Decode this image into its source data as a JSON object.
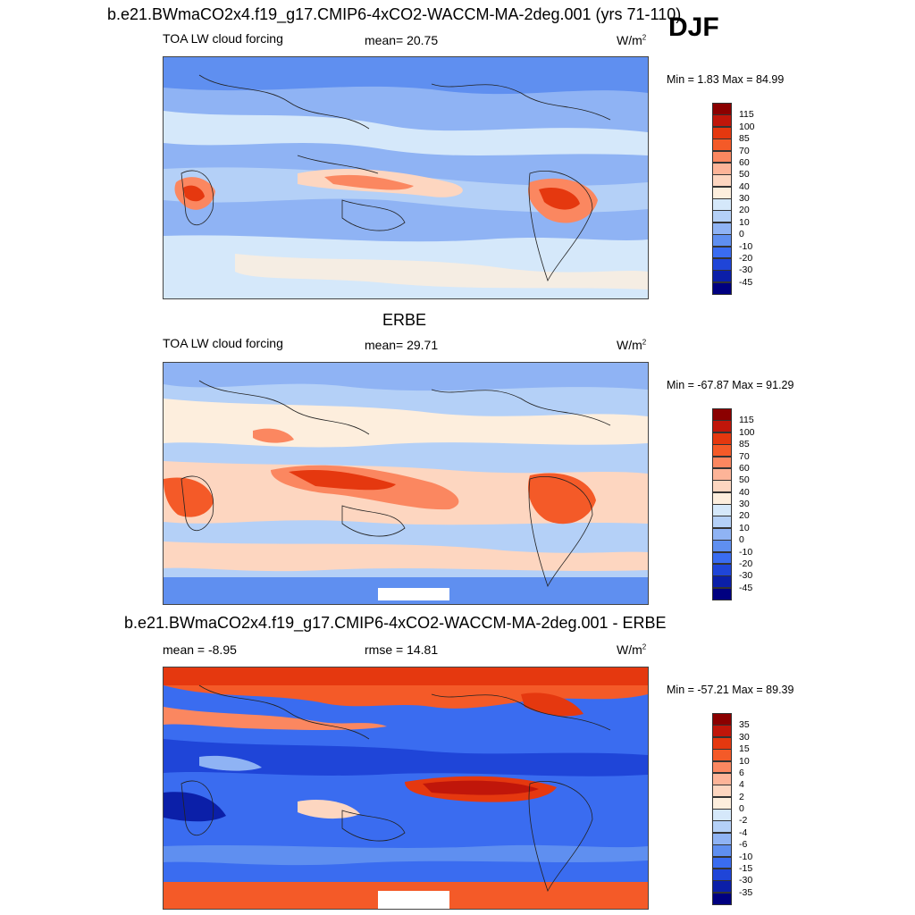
{
  "header": {
    "title": "b.e21.BWmaCO2x4.f19_g17.CMIP6-4xCO2-WACCM-MA-2deg.001 (yrs 71-110)",
    "season": "DJF"
  },
  "chart_data": [
    {
      "type": "heatmap",
      "panel": "model",
      "variable": "TOA LW cloud forcing",
      "mean_label": "mean=  20.75",
      "units": "W/m",
      "units_sup": "2",
      "minmax_label": "Min =   1.83 Max =  84.99",
      "min": 1.83,
      "max": 84.99,
      "mean": 20.75,
      "colorbar_levels": [
        "115",
        "100",
        "85",
        "70",
        "60",
        "50",
        "40",
        "30",
        "20",
        "10",
        "0",
        "-10",
        "-20",
        "-30",
        "-45"
      ],
      "colorbar_colors": [
        "#8b0000",
        "#c0160a",
        "#e5380f",
        "#f45a28",
        "#fb8760",
        "#fdb498",
        "#fdd6c0",
        "#fdeedd",
        "#d5e8fa",
        "#b4d0f7",
        "#8fb3f4",
        "#5f8ff0",
        "#3a6cf0",
        "#1f45d8",
        "#0b1fa8",
        "#000080"
      ]
    },
    {
      "type": "heatmap",
      "panel": "obs",
      "title": "ERBE",
      "variable": "TOA LW cloud forcing",
      "mean_label": "mean=  29.71",
      "units": "W/m",
      "units_sup": "2",
      "minmax_label": "Min = -67.87 Max =  91.29",
      "min": -67.87,
      "max": 91.29,
      "mean": 29.71,
      "colorbar_levels": [
        "115",
        "100",
        "85",
        "70",
        "60",
        "50",
        "40",
        "30",
        "20",
        "10",
        "0",
        "-10",
        "-20",
        "-30",
        "-45"
      ],
      "colorbar_colors": [
        "#8b0000",
        "#c0160a",
        "#e5380f",
        "#f45a28",
        "#fb8760",
        "#fdb498",
        "#fdd6c0",
        "#fdeedd",
        "#d5e8fa",
        "#b4d0f7",
        "#8fb3f4",
        "#5f8ff0",
        "#3a6cf0",
        "#1f45d8",
        "#0b1fa8",
        "#000080"
      ]
    },
    {
      "type": "heatmap",
      "panel": "difference",
      "title": "b.e21.BWmaCO2x4.f19_g17.CMIP6-4xCO2-WACCM-MA-2deg.001 - ERBE",
      "mean_label": "mean =  -8.95",
      "rmse_label": "rmse =  14.81",
      "units": "W/m",
      "units_sup": "2",
      "minmax_label": "Min = -57.21 Max =  89.39",
      "min": -57.21,
      "max": 89.39,
      "mean": -8.95,
      "rmse": 14.81,
      "colorbar_levels": [
        "35",
        "30",
        "15",
        "10",
        "6",
        "4",
        "2",
        "0",
        "-2",
        "-4",
        "-6",
        "-10",
        "-15",
        "-30",
        "-35"
      ],
      "colorbar_colors": [
        "#8b0000",
        "#c0160a",
        "#e5380f",
        "#f45a28",
        "#fb8760",
        "#fdb498",
        "#fdd6c0",
        "#fdeedd",
        "#d5e8fa",
        "#b4d0f7",
        "#8fb3f4",
        "#5f8ff0",
        "#3a6cf0",
        "#1f45d8",
        "#0b1fa8",
        "#000080"
      ]
    }
  ]
}
